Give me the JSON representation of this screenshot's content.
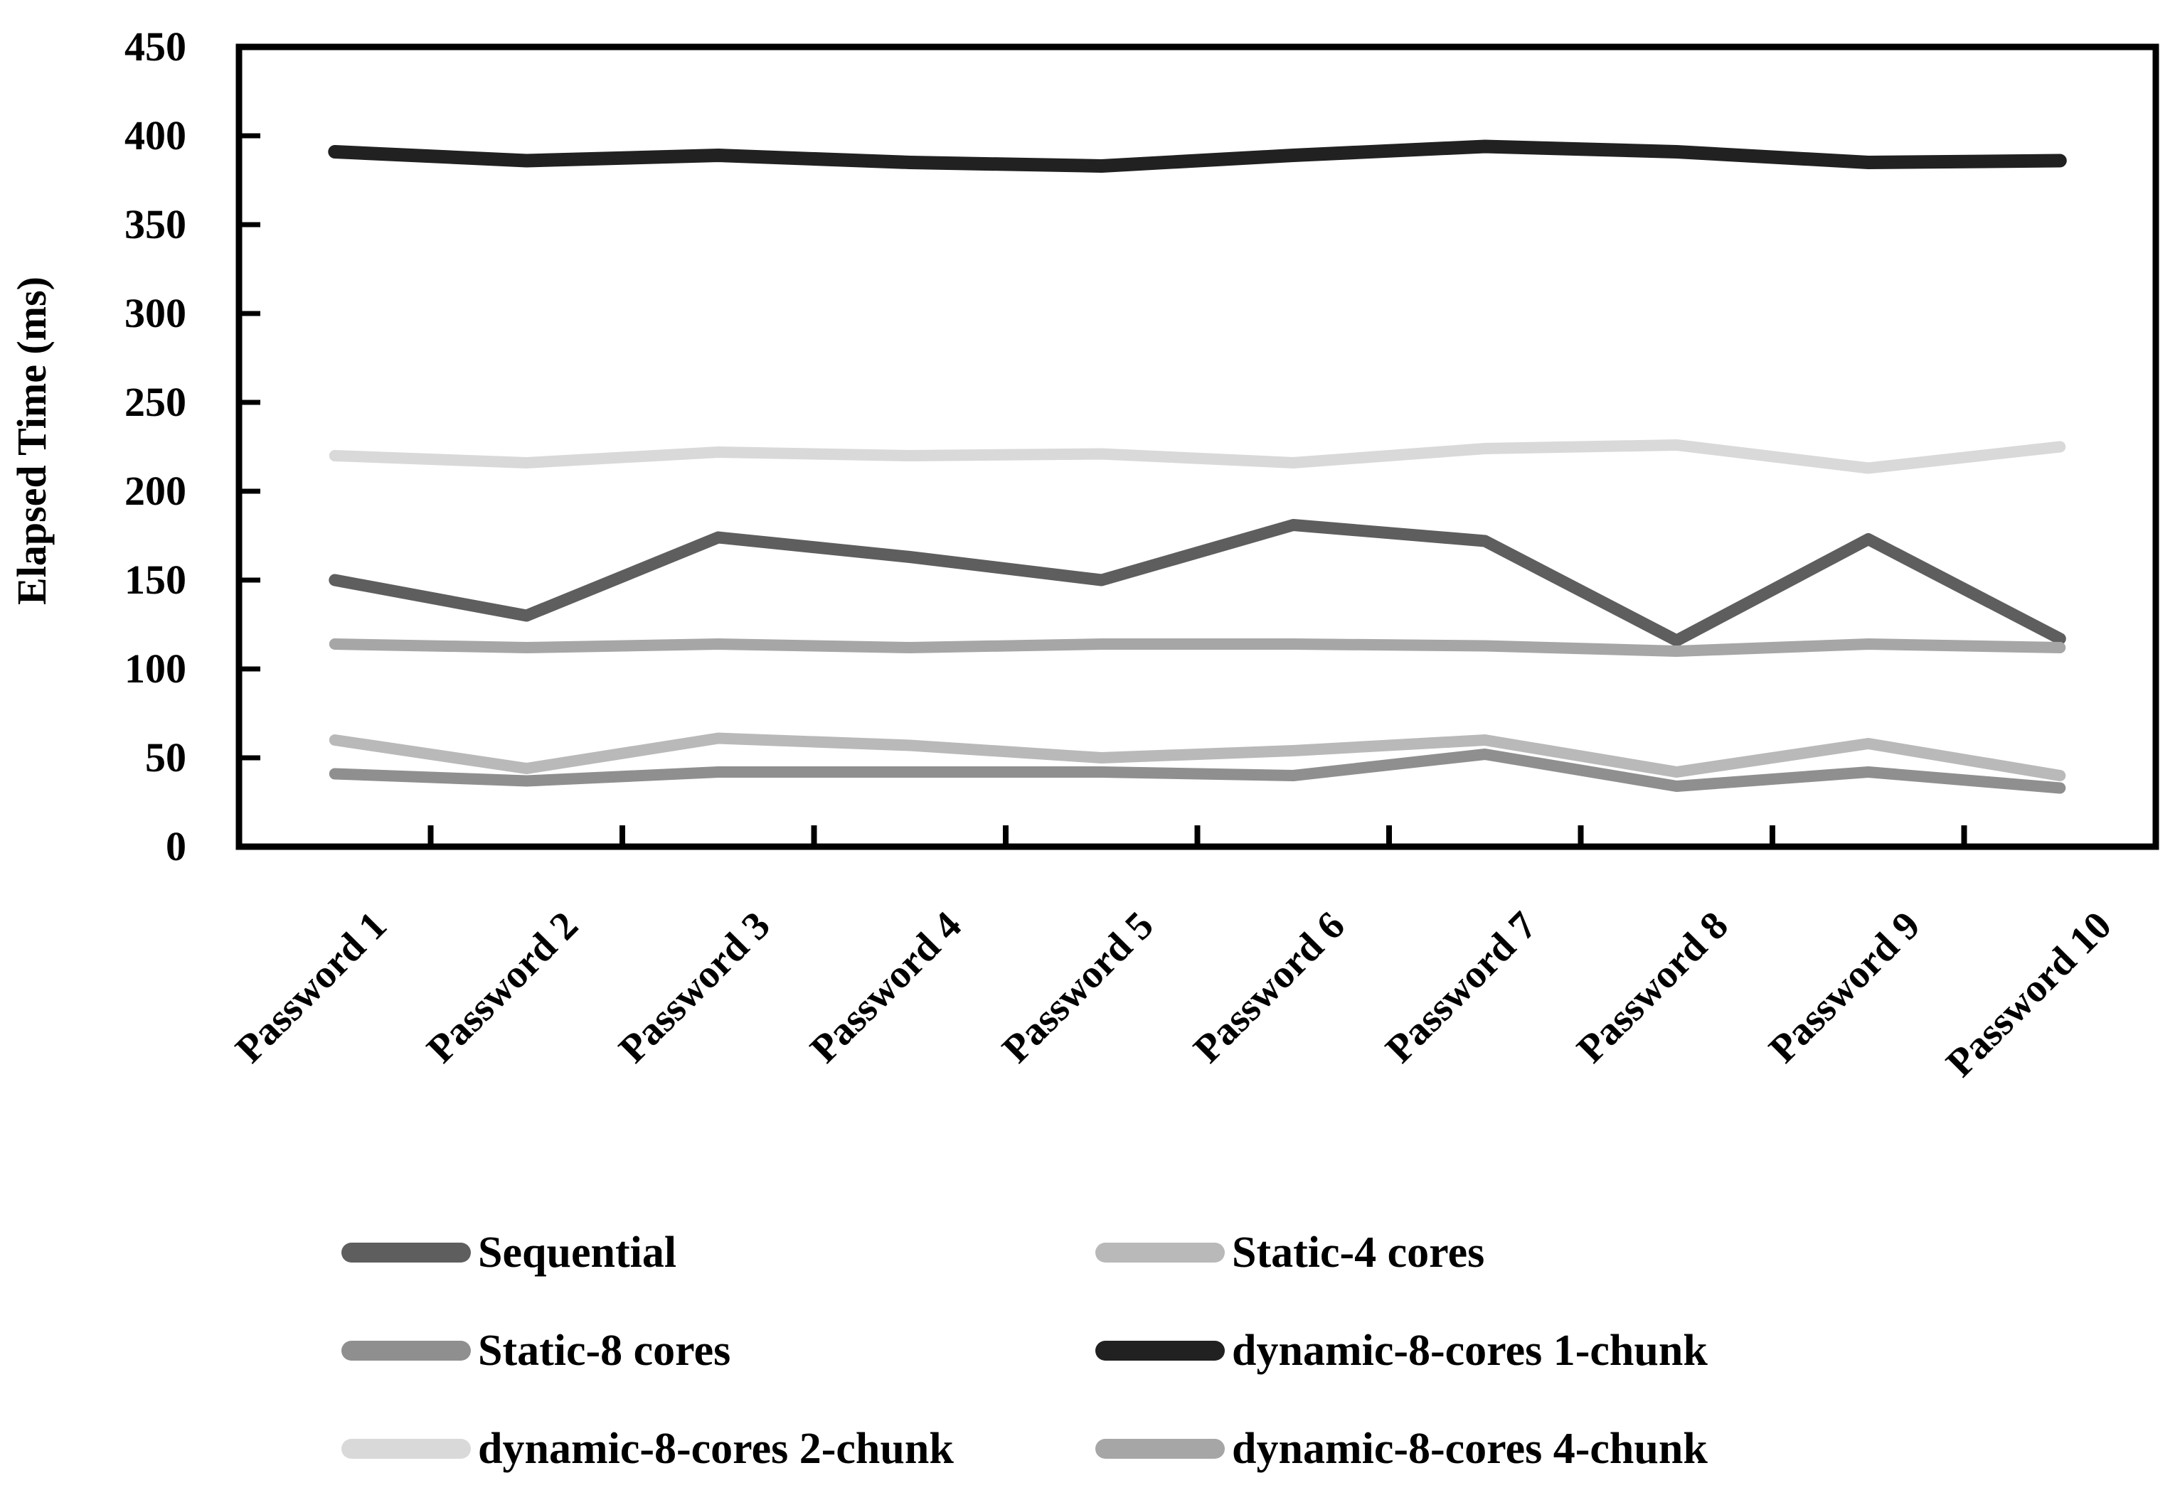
{
  "figure": {
    "background": "#ffffff",
    "axis_color": "#000000",
    "text_color": "#000000"
  },
  "chart_data": {
    "type": "line",
    "title": "",
    "xlabel": "",
    "ylabel": "Elapsed Time (ms)",
    "ylim": [
      0,
      450
    ],
    "ytick_step": 50,
    "yticks": [
      0,
      50,
      100,
      150,
      200,
      250,
      300,
      350,
      400,
      450
    ],
    "grid": false,
    "legend_position": "bottom",
    "legend_columns": 2,
    "categories": [
      "Password 1",
      "Password 2",
      "Password 3",
      "Password 4",
      "Password 5",
      "Password 6",
      "Password 7",
      "Password 8",
      "Password 9",
      "Password 10"
    ],
    "series": [
      {
        "name": "Sequential",
        "color": "#5e5e5e",
        "values": [
          150,
          130,
          174,
          163,
          150,
          181,
          172,
          116,
          173,
          117
        ]
      },
      {
        "name": "Static-4 cores",
        "color": "#b9b9b9",
        "values": [
          60,
          44,
          61,
          57,
          50,
          54,
          60,
          42,
          58,
          40
        ]
      },
      {
        "name": "Static-8 cores",
        "color": "#8f8f8f",
        "values": [
          41,
          37,
          42,
          42,
          42,
          40,
          52,
          34,
          42,
          33
        ]
      },
      {
        "name": "dynamic-8-cores 1-chunk",
        "color": "#212121",
        "values": [
          391,
          386,
          389,
          385,
          383,
          389,
          394,
          391,
          385,
          386
        ]
      },
      {
        "name": "dynamic-8-cores 2-chunk",
        "color": "#d9d9d9",
        "values": [
          220,
          216,
          222,
          220,
          221,
          216,
          224,
          226,
          213,
          225
        ]
      },
      {
        "name": "dynamic-8-cores 4-chunk",
        "color": "#a6a6a6",
        "values": [
          114,
          112,
          114,
          112,
          114,
          114,
          113,
          110,
          114,
          112
        ]
      }
    ]
  }
}
